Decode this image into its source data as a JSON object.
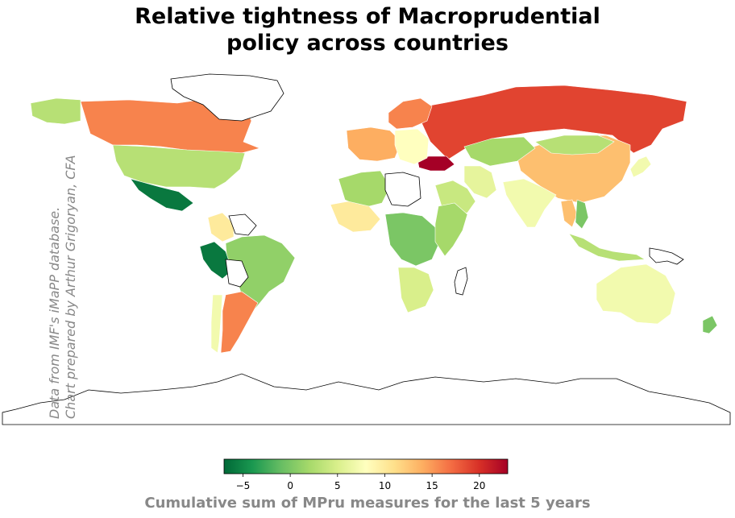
{
  "chart_data": {
    "type": "choropleth",
    "title_lines": [
      "Relative tightness of Macroprudential",
      "policy  across countries"
    ],
    "source_note_lines": [
      "Data from IMF's iMaPP database.",
      "Chart prepared by Arthur Grigoryan, CFA"
    ],
    "colorbar": {
      "label": "Cumulative sum of MPru measures for the last 5 years",
      "min": -7,
      "max": 23,
      "ticks": [
        -5,
        0,
        5,
        10,
        15,
        20
      ],
      "tick_labels": [
        "−5",
        "0",
        "5",
        "10",
        "15",
        "20"
      ],
      "colormap": "RdYlGn_r",
      "colors": [
        "#006837",
        "#1a9850",
        "#66bd63",
        "#a6d96a",
        "#d9ef8b",
        "#ffffbf",
        "#fee08b",
        "#fdae61",
        "#f46d43",
        "#d73027",
        "#a50026"
      ]
    },
    "no_data_fill": "#ffffff",
    "regions": [
      {
        "id": "russia",
        "value": 19
      },
      {
        "id": "canada",
        "value": 16
      },
      {
        "id": "usa",
        "value": 3
      },
      {
        "id": "mexico",
        "value": -6
      },
      {
        "id": "alaska",
        "value": 3
      },
      {
        "id": "greenland",
        "value": null
      },
      {
        "id": "china",
        "value": 13
      },
      {
        "id": "mongolia",
        "value": 3
      },
      {
        "id": "kazakhstan",
        "value": 2
      },
      {
        "id": "india",
        "value": 7
      },
      {
        "id": "brazil",
        "value": 1
      },
      {
        "id": "argentina",
        "value": 16
      },
      {
        "id": "chile",
        "value": 7
      },
      {
        "id": "peru",
        "value": -6
      },
      {
        "id": "colombia",
        "value": 10
      },
      {
        "id": "venezuela",
        "value": null
      },
      {
        "id": "bolivia",
        "value": null
      },
      {
        "id": "australia",
        "value": 7
      },
      {
        "id": "indonesia",
        "value": 3
      },
      {
        "id": "turkey",
        "value": 23
      },
      {
        "id": "iran",
        "value": 6
      },
      {
        "id": "saudi-arabia",
        "value": 4
      },
      {
        "id": "scandinavia",
        "value": 16
      },
      {
        "id": "europe-west",
        "value": 14
      },
      {
        "id": "europe-east",
        "value": 8
      },
      {
        "id": "algeria",
        "value": 2
      },
      {
        "id": "libya",
        "value": null
      },
      {
        "id": "west-africa",
        "value": 10
      },
      {
        "id": "central-africa",
        "value": 0
      },
      {
        "id": "east-africa",
        "value": 2
      },
      {
        "id": "southern-africa",
        "value": 5
      },
      {
        "id": "japan",
        "value": 7
      },
      {
        "id": "new-zealand",
        "value": 0
      },
      {
        "id": "thailand",
        "value": 13
      },
      {
        "id": "vietnam",
        "value": 0
      }
    ]
  }
}
